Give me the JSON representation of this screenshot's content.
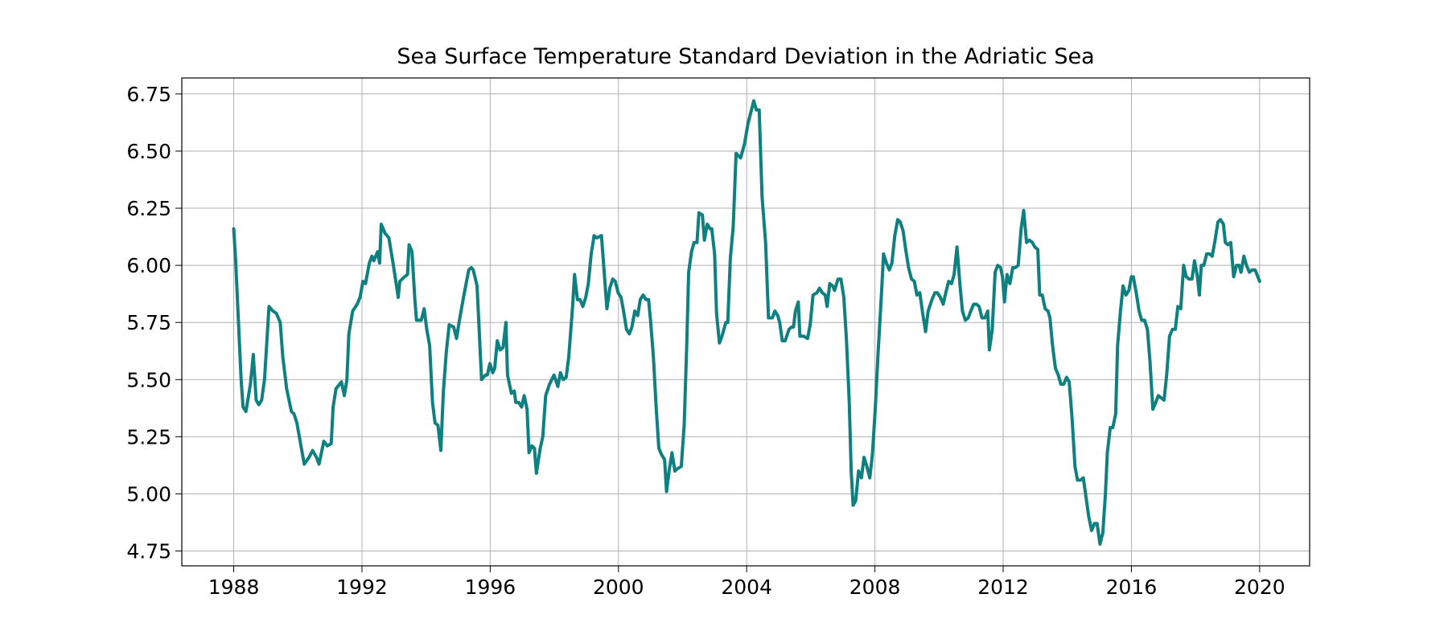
{
  "chart_data": {
    "type": "line",
    "title": "Sea Surface Temperature Standard Deviation in the Adriatic Sea",
    "color": "#0e8080",
    "grid": true,
    "xlim": [
      1986.38,
      2021.56
    ],
    "ylim": [
      4.685,
      6.82
    ],
    "xticks": [
      1988,
      1992,
      1996,
      2000,
      2004,
      2008,
      2012,
      2016,
      2020
    ],
    "yticks": [
      4.75,
      {
        "value": 5,
        "label": "5.00"
      },
      5.25,
      {
        "value": 5.5,
        "label": "5.50"
      },
      5.75,
      {
        "value": 6,
        "label": "6.00"
      },
      6.25,
      {
        "value": 6.5,
        "label": "6.50"
      },
      6.75
    ],
    "x": [
      1988.0,
      1988.06,
      1988.23,
      1988.29,
      1988.38,
      1988.52,
      1988.61,
      1988.7,
      1988.78,
      1988.87,
      1988.96,
      1989.1,
      1989.22,
      1989.33,
      1989.45,
      1989.53,
      1989.65,
      1989.8,
      1989.88,
      1989.97,
      1990.11,
      1990.2,
      1990.35,
      1990.46,
      1990.58,
      1990.66,
      1990.81,
      1990.92,
      1991.04,
      1991.1,
      1991.19,
      1991.36,
      1991.45,
      1991.53,
      1991.59,
      1991.71,
      1991.85,
      1991.94,
      1992.03,
      1992.11,
      1992.23,
      1992.31,
      1992.37,
      1992.49,
      1992.55,
      1992.6,
      1992.72,
      1992.84,
      1992.98,
      1993.13,
      1993.18,
      1993.33,
      1993.42,
      1993.47,
      1993.56,
      1993.65,
      1993.7,
      1993.85,
      1993.94,
      1994.02,
      1994.11,
      1994.2,
      1994.28,
      1994.37,
      1994.46,
      1994.54,
      1994.63,
      1994.72,
      1994.86,
      1994.95,
      1995.04,
      1995.18,
      1995.33,
      1995.41,
      1995.47,
      1995.59,
      1995.73,
      1995.85,
      1995.91,
      1995.99,
      1996.08,
      1996.14,
      1996.22,
      1996.31,
      1996.4,
      1996.49,
      1996.54,
      1996.66,
      1996.75,
      1996.8,
      1996.89,
      1996.98,
      1997.06,
      1997.15,
      1997.21,
      1997.3,
      1997.38,
      1997.44,
      1997.56,
      1997.64,
      1997.73,
      1997.85,
      1997.99,
      1998.11,
      1998.19,
      1998.28,
      1998.37,
      1998.45,
      1998.57,
      1998.63,
      1998.72,
      1998.8,
      1998.89,
      1998.98,
      1999.06,
      1999.15,
      1999.24,
      1999.32,
      1999.47,
      1999.55,
      1999.64,
      1999.73,
      1999.82,
      1999.9,
      1999.99,
      2000.08,
      2000.16,
      2000.25,
      2000.34,
      2000.42,
      2000.51,
      2000.6,
      2000.68,
      2000.77,
      2000.86,
      2000.94,
      2001.0,
      2001.09,
      2001.18,
      2001.26,
      2001.35,
      2001.44,
      2001.5,
      2001.58,
      2001.67,
      2001.76,
      2001.84,
      2001.96,
      2002.05,
      2002.13,
      2002.19,
      2002.28,
      2002.36,
      2002.45,
      2002.51,
      2002.62,
      2002.68,
      2002.77,
      2002.86,
      2002.91,
      2003.0,
      2003.06,
      2003.15,
      2003.23,
      2003.35,
      2003.41,
      2003.49,
      2003.58,
      2003.67,
      2003.81,
      2003.93,
      2004.04,
      2004.13,
      2004.22,
      2004.3,
      2004.39,
      2004.48,
      2004.59,
      2004.68,
      2004.8,
      2004.88,
      2004.97,
      2005.03,
      2005.11,
      2005.2,
      2005.32,
      2005.4,
      2005.46,
      2005.52,
      2005.61,
      2005.66,
      2005.78,
      2005.9,
      2005.98,
      2006.07,
      2006.19,
      2006.27,
      2006.36,
      2006.45,
      2006.51,
      2006.59,
      2006.68,
      2006.74,
      2006.85,
      2006.94,
      2007.03,
      2007.11,
      2007.2,
      2007.26,
      2007.32,
      2007.4,
      2007.49,
      2007.58,
      2007.66,
      2007.75,
      2007.84,
      2007.92,
      2008.01,
      2008.1,
      2008.19,
      2008.27,
      2008.36,
      2008.45,
      2008.53,
      2008.62,
      2008.71,
      2008.79,
      2008.88,
      2008.97,
      2009.05,
      2009.14,
      2009.23,
      2009.31,
      2009.4,
      2009.49,
      2009.58,
      2009.66,
      2009.78,
      2009.87,
      2009.95,
      2010.04,
      2010.13,
      2010.21,
      2010.3,
      2010.39,
      2010.47,
      2010.56,
      2010.65,
      2010.73,
      2010.82,
      2010.91,
      2010.99,
      2011.08,
      2011.17,
      2011.25,
      2011.34,
      2011.43,
      2011.52,
      2011.57,
      2011.66,
      2011.75,
      2011.83,
      2011.92,
      2011.98,
      2012.04,
      2012.12,
      2012.21,
      2012.3,
      2012.38,
      2012.47,
      2012.56,
      2012.64,
      2012.73,
      2012.82,
      2012.91,
      2012.99,
      2013.08,
      2013.14,
      2013.22,
      2013.31,
      2013.4,
      2013.46,
      2013.54,
      2013.63,
      2013.72,
      2013.8,
      2013.89,
      2013.98,
      2014.06,
      2014.15,
      2014.24,
      2014.32,
      2014.41,
      2014.5,
      2014.59,
      2014.67,
      2014.76,
      2014.85,
      2014.93,
      2015.02,
      2015.11,
      2015.19,
      2015.25,
      2015.34,
      2015.42,
      2015.51,
      2015.57,
      2015.66,
      2015.74,
      2015.83,
      2015.92,
      2016.0,
      2016.06,
      2016.15,
      2016.24,
      2016.32,
      2016.41,
      2016.5,
      2016.58,
      2016.67,
      2016.76,
      2016.84,
      2016.93,
      2017.02,
      2017.1,
      2017.19,
      2017.28,
      2017.37,
      2017.45,
      2017.54,
      2017.63,
      2017.71,
      2017.8,
      2017.89,
      2017.97,
      2018.06,
      2018.12,
      2018.18,
      2018.26,
      2018.35,
      2018.44,
      2018.52,
      2018.61,
      2018.7,
      2018.78,
      2018.87,
      2018.93,
      2019.01,
      2019.1,
      2019.19,
      2019.28,
      2019.36,
      2019.42,
      2019.51,
      2019.59,
      2019.68,
      2019.77,
      2019.86,
      2020.0
    ],
    "values": [
      6.16,
      6.02,
      5.5,
      5.38,
      5.36,
      5.48,
      5.61,
      5.41,
      5.39,
      5.41,
      5.5,
      5.82,
      5.8,
      5.79,
      5.75,
      5.6,
      5.46,
      5.36,
      5.35,
      5.31,
      5.2,
      5.13,
      5.16,
      5.19,
      5.16,
      5.13,
      5.23,
      5.21,
      5.22,
      5.38,
      5.46,
      5.49,
      5.43,
      5.5,
      5.7,
      5.8,
      5.83,
      5.86,
      5.93,
      5.92,
      6.01,
      6.04,
      6.02,
      6.06,
      6.01,
      6.18,
      6.14,
      6.12,
      6.0,
      5.86,
      5.93,
      5.95,
      5.96,
      6.09,
      6.06,
      5.85,
      5.76,
      5.76,
      5.81,
      5.72,
      5.65,
      5.4,
      5.31,
      5.3,
      5.19,
      5.45,
      5.62,
      5.74,
      5.73,
      5.68,
      5.76,
      5.87,
      5.98,
      5.99,
      5.98,
      5.91,
      5.5,
      5.52,
      5.52,
      5.57,
      5.53,
      5.55,
      5.67,
      5.63,
      5.64,
      5.75,
      5.52,
      5.44,
      5.45,
      5.4,
      5.4,
      5.38,
      5.43,
      5.37,
      5.18,
      5.21,
      5.2,
      5.09,
      5.2,
      5.25,
      5.43,
      5.48,
      5.52,
      5.47,
      5.53,
      5.5,
      5.51,
      5.6,
      5.82,
      5.96,
      5.85,
      5.85,
      5.82,
      5.86,
      5.92,
      6.05,
      6.13,
      6.12,
      6.13,
      5.98,
      5.81,
      5.9,
      5.94,
      5.93,
      5.88,
      5.86,
      5.8,
      5.72,
      5.7,
      5.73,
      5.8,
      5.78,
      5.85,
      5.87,
      5.85,
      5.85,
      5.76,
      5.6,
      5.37,
      5.2,
      5.17,
      5.15,
      5.01,
      5.1,
      5.18,
      5.1,
      5.11,
      5.12,
      5.3,
      5.65,
      5.97,
      6.06,
      6.1,
      6.1,
      6.23,
      6.22,
      6.11,
      6.18,
      6.16,
      6.16,
      6.05,
      5.79,
      5.66,
      5.69,
      5.75,
      5.75,
      6.03,
      6.17,
      6.49,
      6.47,
      6.53,
      6.62,
      6.67,
      6.72,
      6.68,
      6.68,
      6.3,
      6.1,
      5.77,
      5.77,
      5.8,
      5.78,
      5.75,
      5.67,
      5.67,
      5.72,
      5.73,
      5.73,
      5.8,
      5.84,
      5.69,
      5.69,
      5.68,
      5.74,
      5.87,
      5.88,
      5.9,
      5.88,
      5.87,
      5.82,
      5.92,
      5.91,
      5.89,
      5.94,
      5.94,
      5.86,
      5.68,
      5.4,
      5.1,
      4.95,
      4.97,
      5.1,
      5.07,
      5.16,
      5.12,
      5.07,
      5.17,
      5.37,
      5.62,
      5.84,
      6.05,
      6.01,
      5.98,
      6.01,
      6.13,
      6.2,
      6.19,
      6.15,
      6.06,
      5.99,
      5.94,
      5.93,
      5.87,
      5.88,
      5.79,
      5.71,
      5.8,
      5.85,
      5.88,
      5.88,
      5.86,
      5.83,
      5.88,
      5.93,
      5.92,
      5.96,
      6.08,
      5.92,
      5.8,
      5.76,
      5.77,
      5.8,
      5.83,
      5.83,
      5.82,
      5.77,
      5.77,
      5.8,
      5.63,
      5.72,
      5.97,
      6.0,
      5.99,
      5.95,
      5.84,
      5.96,
      5.92,
      5.99,
      5.99,
      6.0,
      6.16,
      6.24,
      6.1,
      6.11,
      6.1,
      6.08,
      6.07,
      5.87,
      5.87,
      5.81,
      5.8,
      5.77,
      5.65,
      5.55,
      5.52,
      5.48,
      5.48,
      5.51,
      5.49,
      5.33,
      5.12,
      5.06,
      5.06,
      5.07,
      4.98,
      4.9,
      4.84,
      4.87,
      4.87,
      4.78,
      4.83,
      5.0,
      5.18,
      5.29,
      5.29,
      5.35,
      5.65,
      5.8,
      5.91,
      5.87,
      5.89,
      5.95,
      5.95,
      5.88,
      5.8,
      5.76,
      5.76,
      5.72,
      5.58,
      5.37,
      5.4,
      5.43,
      5.42,
      5.41,
      5.52,
      5.69,
      5.72,
      5.72,
      5.82,
      5.81,
      6.0,
      5.95,
      5.94,
      5.94,
      6.02,
      5.95,
      5.87,
      6.0,
      6.0,
      6.05,
      6.05,
      6.04,
      6.11,
      6.19,
      6.2,
      6.18,
      6.1,
      6.09,
      6.1,
      5.95,
      6.0,
      6.0,
      5.97,
      6.04,
      6.0,
      5.97,
      5.98,
      5.98,
      5.93
    ]
  }
}
